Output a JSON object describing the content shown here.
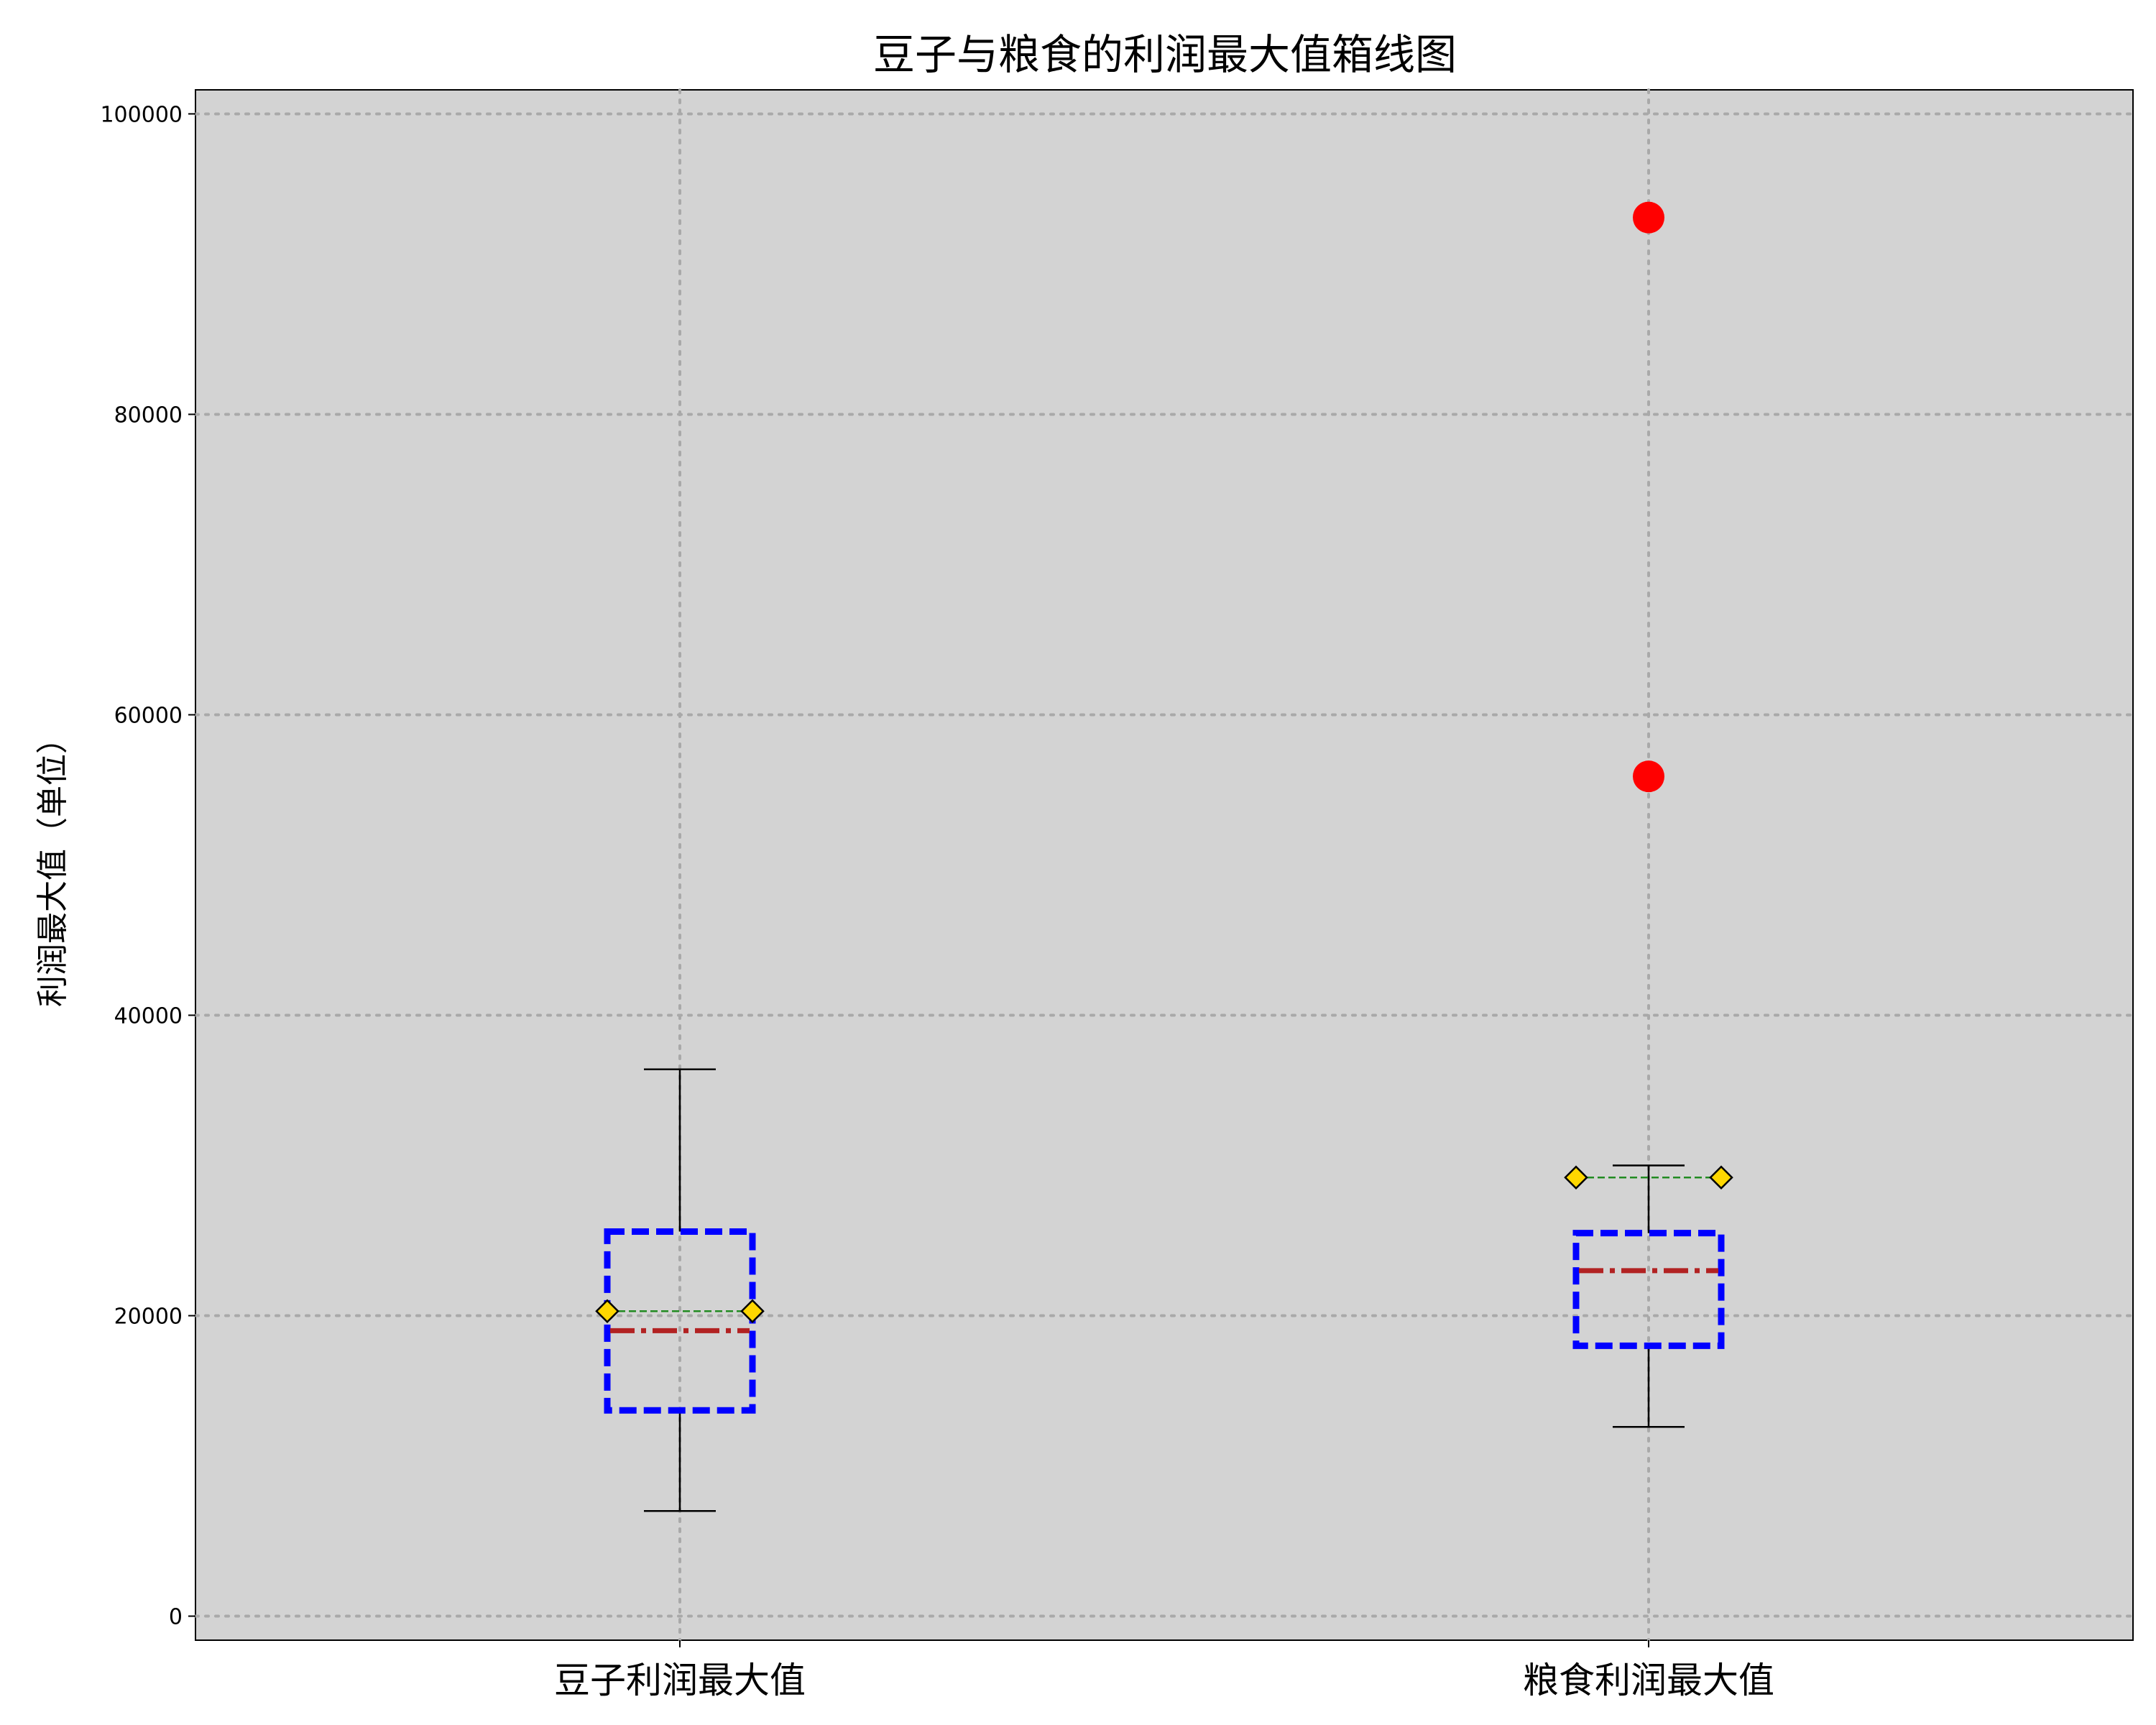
{
  "chart_data": {
    "type": "boxplot",
    "title": "豆子与粮食的利润最大值箱线图",
    "xlabel": "",
    "ylabel": "利润最大值（单位）",
    "ylim": [
      -1600,
      101600
    ],
    "yticks": [
      0,
      20000,
      40000,
      60000,
      80000,
      100000
    ],
    "ytick_labels": [
      "0",
      "20000",
      "40000",
      "60000",
      "80000",
      "100000"
    ],
    "grid": true,
    "categories": [
      "豆子利润最大值",
      "粮食利润最大值"
    ],
    "boxes": [
      {
        "whisker_low": 7000,
        "q1": 13700,
        "median": 19000,
        "q3": 25600,
        "whisker_high": 36400,
        "mean": 20300,
        "outliers": []
      },
      {
        "whisker_low": 12600,
        "q1": 18000,
        "median": 23000,
        "q3": 25500,
        "whisker_high": 30000,
        "mean": 29200,
        "outliers": [
          93100,
          55900
        ]
      }
    ],
    "colors": {
      "plot_background": "#d3d3d3",
      "box_edge": "#0000ff",
      "median": "#b22222",
      "mean_line": "#228b22",
      "mean_marker": "#ffd700",
      "outlier": "#ff0000",
      "whisker": "#000000",
      "grid": "#a9a9a9"
    }
  }
}
